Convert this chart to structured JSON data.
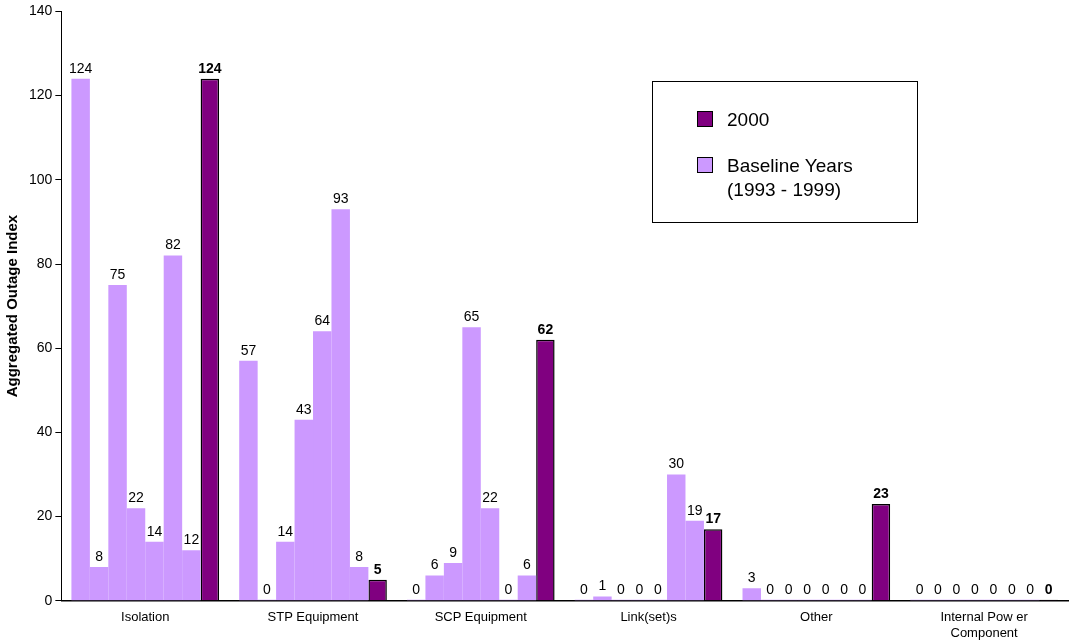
{
  "chart_data": {
    "type": "bar",
    "ylabel": "Aggregated Outage Index",
    "categories": [
      "Isolation",
      "STP Equipment",
      "SCP Equipment",
      "Link(set)s",
      "Other",
      "Internal Pow er Component"
    ],
    "series": [
      {
        "name": "Baseline Years (1993 - 1999)",
        "color": "#cc99ff",
        "values": [
          124,
          57,
          0,
          0,
          3,
          0
        ]
      },
      {
        "color": "#cc99ff",
        "values": [
          8,
          0,
          6,
          1,
          0,
          0
        ]
      },
      {
        "color": "#cc99ff",
        "values": [
          75,
          14,
          9,
          0,
          0,
          0
        ]
      },
      {
        "color": "#cc99ff",
        "values": [
          22,
          43,
          65,
          0,
          0,
          0
        ]
      },
      {
        "color": "#cc99ff",
        "values": [
          14,
          64,
          22,
          0,
          0,
          0
        ]
      },
      {
        "color": "#cc99ff",
        "values": [
          82,
          93,
          0,
          30,
          0,
          0
        ]
      },
      {
        "color": "#cc99ff",
        "values": [
          12,
          8,
          6,
          19,
          0,
          0
        ]
      },
      {
        "name": "2000",
        "color": "#800080",
        "values": [
          124,
          5,
          62,
          17,
          23,
          0
        ]
      }
    ],
    "ylim": [
      0,
      140
    ],
    "yticks": [
      0,
      20,
      40,
      60,
      80,
      100,
      120,
      140
    ],
    "grid": false,
    "legend": "top right",
    "data_labels": true
  }
}
